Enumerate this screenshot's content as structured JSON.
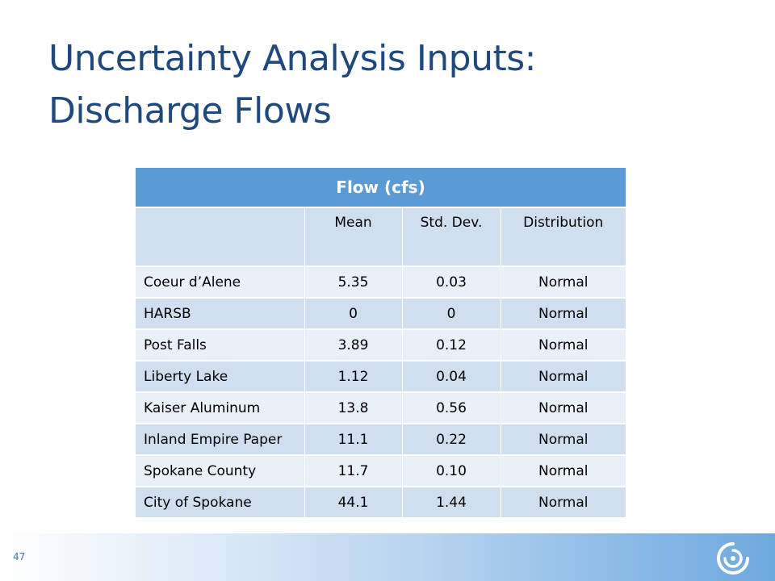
{
  "slide": {
    "title_line1": "Uncertainty Analysis Inputs:",
    "title_line2": "Discharge Flows",
    "page_number": "47"
  },
  "table": {
    "group_header": "Flow (cfs)",
    "columns": [
      "",
      "Mean",
      "Std. Dev.",
      "Distribution"
    ],
    "rows": [
      {
        "name": "Coeur d’Alene",
        "mean": "5.35",
        "std": "0.03",
        "dist": "Normal"
      },
      {
        "name": "HARSB",
        "mean": "0",
        "std": "0",
        "dist": "Normal"
      },
      {
        "name": "Post Falls",
        "mean": "3.89",
        "std": "0.12",
        "dist": "Normal"
      },
      {
        "name": "Liberty Lake",
        "mean": "1.12",
        "std": "0.04",
        "dist": "Normal"
      },
      {
        "name": "Kaiser Aluminum",
        "mean": "13.8",
        "std": "0.56",
        "dist": "Normal"
      },
      {
        "name": "Inland Empire Paper",
        "mean": "11.1",
        "std": "0.22",
        "dist": "Normal"
      },
      {
        "name": "Spokane County",
        "mean": "11.7",
        "std": "0.10",
        "dist": "Normal"
      },
      {
        "name": "City of Spokane",
        "mean": "44.1",
        "std": "1.44",
        "dist": "Normal"
      }
    ]
  },
  "theme": {
    "title_color": "#1f497d",
    "header_color": "#5b9bd5",
    "row_light": "#e9f0f8",
    "row_dark": "#d0dff0"
  },
  "icons": {
    "logo": "swirl-logo-icon"
  }
}
